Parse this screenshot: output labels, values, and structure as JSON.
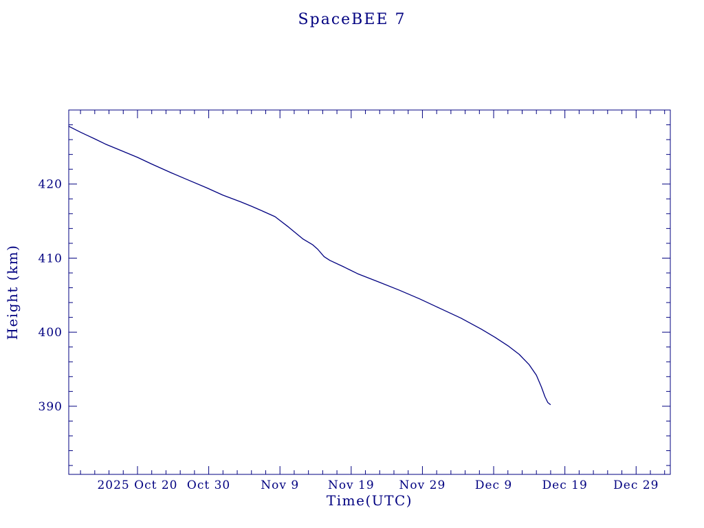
{
  "page": {
    "background": "#ffffff",
    "accent_color": "#000080"
  },
  "chart_data": {
    "type": "line",
    "title": "SpaceBEE 7",
    "xlabel": "Time(UTC)",
    "ylabel": "Height (km)",
    "line_color": "#000080",
    "background": "#ffffff",
    "grid": false,
    "legend": "none",
    "x_day_zero_date": "2025-10-01",
    "xlim_days": [
      9.35,
      93.8
    ],
    "ylim": [
      380.8,
      430
    ],
    "x_ticks": [
      {
        "day": 19,
        "label": "2025 Oct 20"
      },
      {
        "day": 29,
        "label": "Oct 30"
      },
      {
        "day": 39,
        "label": "Nov 9"
      },
      {
        "day": 49,
        "label": "Nov 19"
      },
      {
        "day": 59,
        "label": "Nov 29"
      },
      {
        "day": 69,
        "label": "Dec 9"
      },
      {
        "day": 79,
        "label": "Dec 19"
      },
      {
        "day": 89,
        "label": "Dec 29"
      }
    ],
    "y_ticks": [
      390,
      400,
      410,
      420
    ],
    "minor_tick_days": 2,
    "minor_tick_km": 2,
    "series": [
      {
        "name": "orbit-height-km",
        "points": [
          [
            9.35,
            427.8
          ],
          [
            11,
            427.0
          ],
          [
            13,
            426.1
          ],
          [
            14.5,
            425.4
          ],
          [
            16,
            424.8
          ],
          [
            19,
            423.6
          ],
          [
            21,
            422.7
          ],
          [
            23.8,
            421.5
          ],
          [
            26,
            420.6
          ],
          [
            28.7,
            419.5
          ],
          [
            31,
            418.5
          ],
          [
            33.5,
            417.6
          ],
          [
            35,
            417.0
          ],
          [
            36.2,
            416.5
          ],
          [
            38.3,
            415.6
          ],
          [
            40.2,
            414.2
          ],
          [
            42.2,
            412.6
          ],
          [
            43.6,
            411.8
          ],
          [
            44.3,
            411.2
          ],
          [
            45.2,
            410.2
          ],
          [
            46,
            409.7
          ],
          [
            48,
            408.8
          ],
          [
            49.9,
            407.9
          ],
          [
            52.8,
            406.8
          ],
          [
            55.7,
            405.7
          ],
          [
            58.6,
            404.5
          ],
          [
            61.5,
            403.2
          ],
          [
            64.4,
            401.9
          ],
          [
            67.3,
            400.4
          ],
          [
            69.2,
            399.3
          ],
          [
            71.1,
            398.1
          ],
          [
            72.6,
            397.0
          ],
          [
            74,
            395.6
          ],
          [
            75,
            394.2
          ],
          [
            75.7,
            392.6
          ],
          [
            76.2,
            391.3
          ],
          [
            76.6,
            390.5
          ],
          [
            77,
            390.2
          ]
        ]
      }
    ]
  }
}
